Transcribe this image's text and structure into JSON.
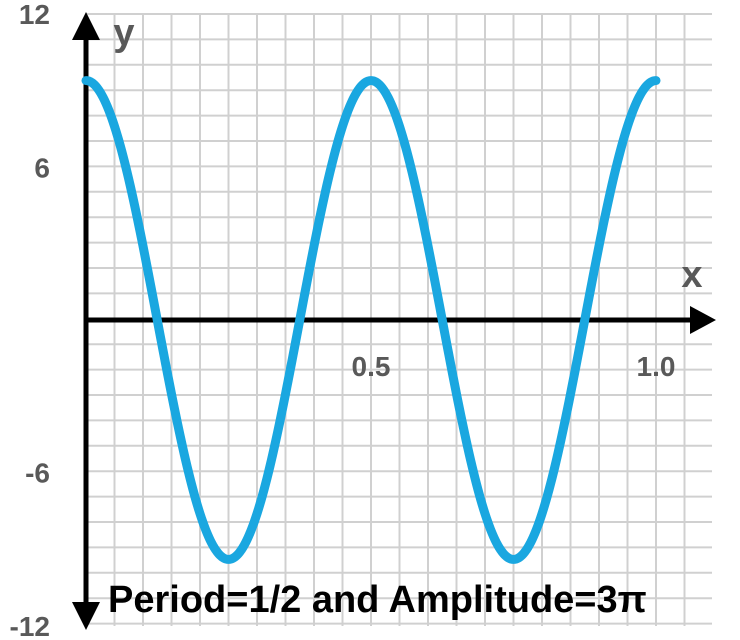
{
  "chart_data": {
    "type": "line",
    "function": "y = 3π·cos(4πx)",
    "xlabel": "x",
    "ylabel": "y",
    "xlim": [
      0,
      1.1
    ],
    "ylim": [
      -12,
      12
    ],
    "x_ticks": [
      {
        "value": 0.5,
        "label": "0.5"
      },
      {
        "value": 1.0,
        "label": "1.0"
      }
    ],
    "y_ticks": [
      {
        "value": 12,
        "label": "12"
      },
      {
        "value": 6,
        "label": "6"
      },
      {
        "value": -6,
        "label": "-6"
      },
      {
        "value": -12,
        "label": "-12"
      }
    ],
    "grid": true,
    "series": [
      {
        "color": "#1aa7e0",
        "x": [
          0,
          0.0625,
          0.125,
          0.1875,
          0.25,
          0.3125,
          0.375,
          0.4375,
          0.5,
          0.5625,
          0.625,
          0.6875,
          0.75,
          0.8125,
          0.875,
          0.9375,
          1.0
        ],
        "y": [
          9.42,
          6.66,
          0,
          -6.66,
          -9.42,
          -6.66,
          0,
          6.66,
          9.42,
          6.66,
          0,
          -6.66,
          -9.42,
          -6.66,
          0,
          6.66,
          9.42
        ]
      }
    ],
    "annotations": [
      {
        "text": "Period=1/2 and Amplitude=3π"
      }
    ]
  }
}
